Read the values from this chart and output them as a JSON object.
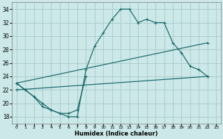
{
  "xlabel": "Humidex (Indice chaleur)",
  "bg_color": "#cce8e8",
  "grid_color": "#aacccc",
  "line_color": "#1a6b6b",
  "xlim": [
    -0.5,
    23.5
  ],
  "ylim": [
    17,
    35
  ],
  "xticks": [
    0,
    1,
    2,
    3,
    4,
    5,
    6,
    7,
    8,
    9,
    10,
    11,
    12,
    13,
    14,
    15,
    16,
    17,
    18,
    19,
    20,
    21,
    22,
    23
  ],
  "yticks": [
    18,
    20,
    22,
    24,
    26,
    28,
    30,
    32,
    34
  ],
  "series": [
    {
      "x": [
        0,
        1,
        2,
        3,
        4,
        5,
        6,
        7,
        8,
        9,
        10,
        11,
        12,
        13,
        14,
        15,
        16,
        17,
        18,
        19,
        20,
        21,
        22
      ],
      "y": [
        23,
        22,
        21,
        20,
        19,
        18.5,
        18,
        18,
        25,
        28.5,
        30.5,
        32.5,
        34,
        34,
        32,
        32.5,
        32,
        32,
        29,
        27.5,
        25.5,
        25,
        24
      ]
    },
    {
      "x": [
        0,
        1,
        2,
        3,
        4,
        5,
        6,
        7,
        8
      ],
      "y": [
        23,
        22,
        21,
        19.5,
        19,
        18.5,
        18.5,
        19,
        24
      ]
    },
    {
      "x": [
        0,
        22
      ],
      "y": [
        23,
        29
      ]
    },
    {
      "x": [
        0,
        22
      ],
      "y": [
        22,
        24
      ]
    }
  ]
}
